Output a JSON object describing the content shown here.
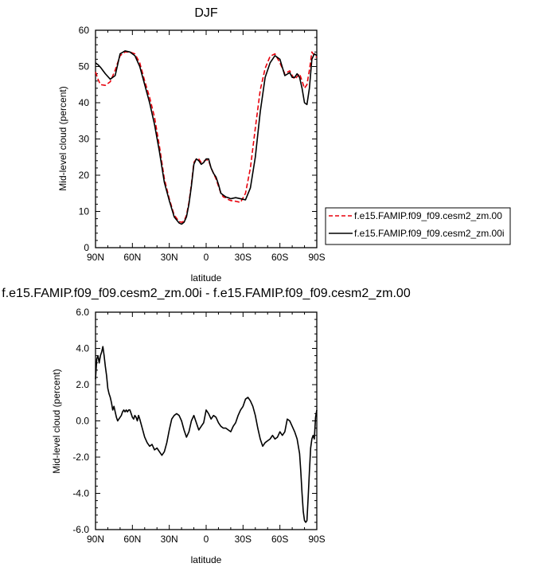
{
  "chart_data": [
    {
      "type": "line",
      "title": "DJF",
      "xlabel": "latitude",
      "ylabel": "Mid-level cloud (percent)",
      "xlim": [
        90,
        -90
      ],
      "ylim": [
        0,
        60
      ],
      "xtick_values": [
        90,
        60,
        30,
        0,
        -30,
        -60,
        -90
      ],
      "xtick_labels": [
        "90N",
        "60N",
        "30N",
        "0",
        "30S",
        "60S",
        "90S"
      ],
      "ytick_values": [
        0,
        10,
        20,
        30,
        40,
        50,
        60
      ],
      "ytick_labels": [
        "0",
        "10",
        "20",
        "30",
        "40",
        "50",
        "60"
      ],
      "legend": "right",
      "grid": false,
      "series": [
        {
          "name": "f.e15.FAMIP.f09_f09.cesm2_zm.00",
          "color": "#e8000b",
          "dash": "dashed",
          "x": [
            90,
            88,
            86,
            82,
            78,
            74,
            70,
            66,
            62,
            58,
            54,
            50,
            46,
            42,
            38,
            34,
            30,
            26,
            22,
            20,
            18,
            16,
            14,
            12,
            10,
            8,
            6,
            4,
            2,
            0,
            -2,
            -4,
            -6,
            -8,
            -10,
            -12,
            -14,
            -16,
            -18,
            -20,
            -24,
            -28,
            -32,
            -36,
            -40,
            -44,
            -48,
            -52,
            -56,
            -60,
            -64,
            -68,
            -70,
            -72,
            -74,
            -76,
            -78,
            -80,
            -82,
            -84,
            -86,
            -88,
            -90
          ],
          "y": [
            48.5,
            46.5,
            45.0,
            44.8,
            45.8,
            49.0,
            53.0,
            54.0,
            54.0,
            53.5,
            51.0,
            46.0,
            41.5,
            36.0,
            28.0,
            19.0,
            13.5,
            9.0,
            7.2,
            7.0,
            7.3,
            9.0,
            12.5,
            17.5,
            23.5,
            24.5,
            24.5,
            23.5,
            23.8,
            24.3,
            24.0,
            22.0,
            20.5,
            19.0,
            17.0,
            15.0,
            14.0,
            13.8,
            13.3,
            13.0,
            12.8,
            12.5,
            15.0,
            22.0,
            33.0,
            43.5,
            49.5,
            52.8,
            53.5,
            51.0,
            48.0,
            48.8,
            47.5,
            46.5,
            47.2,
            48.0,
            46.0,
            44.0,
            45.0,
            49.0,
            54.0,
            53.0,
            52.5
          ]
        },
        {
          "name": "f.e15.FAMIP.f09_f09.cesm2_zm.00i",
          "color": "#000000",
          "dash": "solid",
          "x": [
            90,
            88,
            86,
            82,
            78,
            74,
            70,
            66,
            62,
            58,
            54,
            50,
            46,
            42,
            38,
            34,
            30,
            26,
            22,
            20,
            18,
            16,
            14,
            12,
            10,
            8,
            6,
            4,
            2,
            0,
            -2,
            -4,
            -6,
            -8,
            -10,
            -12,
            -14,
            -16,
            -18,
            -20,
            -24,
            -28,
            -32,
            -36,
            -40,
            -44,
            -48,
            -52,
            -56,
            -60,
            -64,
            -68,
            -70,
            -72,
            -74,
            -76,
            -78,
            -80,
            -82,
            -84,
            -86,
            -88,
            -90
          ],
          "y": [
            51.0,
            50.5,
            49.8,
            48.0,
            46.5,
            47.5,
            53.5,
            54.3,
            54.0,
            53.0,
            50.0,
            45.0,
            40.0,
            34.0,
            26.5,
            18.0,
            13.0,
            8.5,
            6.8,
            6.5,
            7.0,
            8.5,
            12.0,
            17.0,
            23.0,
            24.5,
            24.0,
            23.0,
            23.5,
            24.5,
            24.5,
            22.0,
            20.5,
            19.5,
            17.5,
            15.0,
            14.5,
            14.0,
            13.8,
            13.5,
            13.8,
            13.5,
            13.2,
            16.5,
            25.0,
            37.5,
            47.0,
            51.0,
            53.0,
            52.0,
            47.5,
            48.3,
            47.0,
            47.0,
            48.0,
            47.0,
            44.0,
            40.0,
            39.5,
            44.0,
            52.0,
            53.5,
            53.0
          ]
        }
      ]
    },
    {
      "type": "line",
      "title": "f.e15.FAMIP.f09_f09.cesm2_zm.00i - f.e15.FAMIP.f09_f09.cesm2_zm.00",
      "xlabel": "latitude",
      "ylabel": "Mid-level cloud (percent)",
      "xlim": [
        90,
        -90
      ],
      "ylim": [
        -6,
        6
      ],
      "xtick_values": [
        90,
        60,
        30,
        0,
        -30,
        -60,
        -90
      ],
      "xtick_labels": [
        "90N",
        "60N",
        "30N",
        "0",
        "30S",
        "60S",
        "90S"
      ],
      "ytick_values": [
        -6,
        -4,
        -2,
        0,
        2,
        4,
        6
      ],
      "ytick_labels": [
        "-6.0",
        "-4.0",
        "-2.0",
        "0.0",
        "2.0",
        "4.0",
        "6.0"
      ],
      "grid": false,
      "series": [
        {
          "color": "#000000",
          "dash": "solid",
          "x": [
            90,
            89,
            88,
            87,
            86,
            85,
            84,
            83,
            82,
            81,
            80,
            79,
            78,
            77,
            76,
            75,
            74,
            73,
            72,
            71,
            70,
            69,
            68,
            67,
            66,
            65,
            64,
            63,
            62,
            61,
            60,
            59,
            58,
            57,
            56,
            55,
            54,
            52,
            50,
            48,
            46,
            44,
            42,
            40,
            38,
            36,
            34,
            32,
            30,
            28,
            26,
            24,
            22,
            20,
            18,
            16,
            14,
            12,
            10,
            8,
            6,
            4,
            2,
            0,
            -2,
            -4,
            -6,
            -8,
            -10,
            -12,
            -14,
            -16,
            -18,
            -20,
            -22,
            -24,
            -26,
            -28,
            -30,
            -32,
            -34,
            -36,
            -38,
            -40,
            -42,
            -44,
            -46,
            -48,
            -50,
            -52,
            -54,
            -56,
            -58,
            -60,
            -62,
            -64,
            -66,
            -68,
            -70,
            -72,
            -74,
            -76,
            -77,
            -78,
            -79,
            -80,
            -81,
            -82,
            -83,
            -84,
            -85,
            -86,
            -87,
            -88,
            -89,
            -90
          ],
          "y": [
            2.3,
            3.4,
            3.6,
            3.2,
            3.6,
            3.8,
            4.1,
            3.6,
            3.0,
            2.5,
            1.8,
            1.5,
            1.3,
            1.0,
            0.6,
            0.8,
            0.5,
            0.2,
            0.0,
            0.1,
            0.2,
            0.3,
            0.5,
            0.6,
            0.5,
            0.6,
            0.5,
            0.6,
            0.6,
            0.4,
            0.2,
            0.1,
            0.3,
            0.2,
            0.0,
            0.3,
            0.1,
            -0.4,
            -0.9,
            -1.2,
            -1.4,
            -1.3,
            -1.6,
            -1.5,
            -1.7,
            -1.9,
            -1.7,
            -1.2,
            -0.5,
            0.1,
            0.3,
            0.4,
            0.3,
            0.0,
            -0.5,
            -0.9,
            -0.6,
            0.0,
            0.3,
            -0.1,
            -0.5,
            -0.3,
            -0.1,
            0.6,
            0.4,
            0.1,
            0.3,
            0.2,
            -0.1,
            -0.3,
            -0.4,
            -0.4,
            -0.5,
            -0.6,
            -0.3,
            -0.1,
            0.3,
            0.6,
            0.8,
            1.2,
            1.3,
            1.1,
            0.8,
            0.3,
            -0.4,
            -1.0,
            -1.4,
            -1.2,
            -1.1,
            -1.0,
            -0.8,
            -1.0,
            -0.9,
            -0.6,
            -0.8,
            -0.6,
            0.1,
            0.0,
            -0.3,
            -0.6,
            -1.0,
            -1.8,
            -2.8,
            -4.0,
            -5.0,
            -5.5,
            -5.6,
            -5.5,
            -4.2,
            -2.8,
            -1.5,
            -1.0,
            -0.8,
            -1.0,
            0.2,
            0.6
          ]
        }
      ]
    }
  ]
}
